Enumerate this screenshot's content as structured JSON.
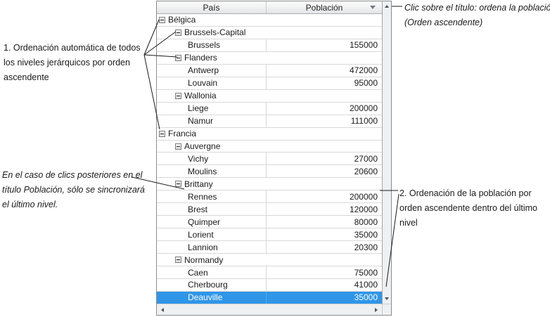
{
  "grid": {
    "header": {
      "col_country": "País",
      "col_population": "Población",
      "sort_icon": "sort-descending-arrow"
    },
    "rows": [
      {
        "label": "Bélgica",
        "level": 0,
        "group": true
      },
      {
        "label": "Brussels-Capital",
        "level": 1,
        "group": true
      },
      {
        "label": "Brussels",
        "level": 2,
        "value": "155000"
      },
      {
        "label": "Flanders",
        "level": 1,
        "group": true
      },
      {
        "label": "Antwerp",
        "level": 2,
        "value": "472000"
      },
      {
        "label": "Louvain",
        "level": 2,
        "value": "95000"
      },
      {
        "label": "Wallonia",
        "level": 1,
        "group": true
      },
      {
        "label": "Liege",
        "level": 2,
        "value": "200000"
      },
      {
        "label": "Namur",
        "level": 2,
        "value": "111000"
      },
      {
        "label": "Francia",
        "level": 0,
        "group": true
      },
      {
        "label": "Auvergne",
        "level": 1,
        "group": true
      },
      {
        "label": "Vichy",
        "level": 2,
        "value": "27000"
      },
      {
        "label": "Moulins",
        "level": 2,
        "value": "20600"
      },
      {
        "label": "Brittany",
        "level": 1,
        "group": true
      },
      {
        "label": "Rennes",
        "level": 2,
        "value": "200000"
      },
      {
        "label": "Brest",
        "level": 2,
        "value": "120000"
      },
      {
        "label": "Quimper",
        "level": 2,
        "value": "80000"
      },
      {
        "label": "Lorient",
        "level": 2,
        "value": "35000"
      },
      {
        "label": "Lannion",
        "level": 2,
        "value": "20300"
      },
      {
        "label": "Normandy",
        "level": 1,
        "group": true
      },
      {
        "label": "Caen",
        "level": 2,
        "value": "75000"
      },
      {
        "label": "Cherbourg",
        "level": 2,
        "value": "41000"
      },
      {
        "label": "Deauville",
        "level": 2,
        "value": "35000",
        "selected": true
      }
    ]
  },
  "annotations": {
    "click_title": {
      "lines": [
        "Clic sobre el título: ordena la población",
        "(Orden ascendente)"
      ]
    },
    "note1": {
      "lines": [
        "1. Ordenación automática de todos",
        "los niveles jerárquicos por orden",
        "ascendente"
      ]
    },
    "note2": {
      "lines": [
        "En el caso de clics posteriores en el",
        "título Población, sólo se sincronizará",
        "el último nivel."
      ]
    },
    "note3": {
      "lines": [
        "2. Ordenación de la población por",
        "orden ascendente dentro del último",
        "nivel"
      ]
    }
  },
  "colors": {
    "selection": "#2f96e8",
    "selection_text": "#ffffff",
    "gridline": "#d9d9d9",
    "widget_border": "#8c8c8c",
    "sort_arrow": "#75797d",
    "annotation_text": "#1a1a1a"
  }
}
